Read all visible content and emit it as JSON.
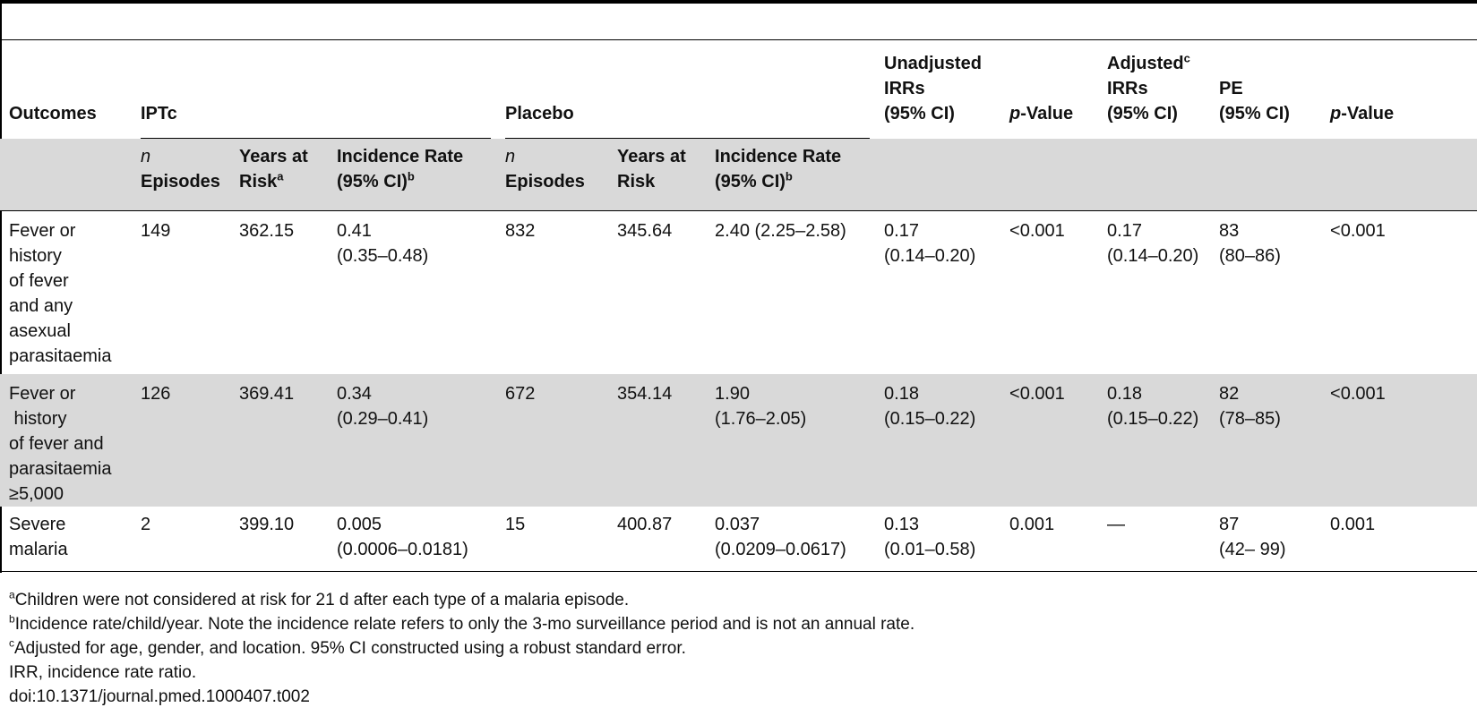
{
  "header": {
    "outcomes": "Outcomes",
    "iptc": "IPTc",
    "placebo": "Placebo",
    "unadjusted_irrs": [
      "Unadjusted",
      "IRRs",
      "(95% CI)"
    ],
    "p_value_italic": "p",
    "p_value_rest": "-Value",
    "adjusted_irrs": [
      "Adjusted",
      "IRRs",
      "(95% CI)"
    ],
    "adjusted_sup": "c",
    "pe": [
      "PE",
      "(95% CI)"
    ]
  },
  "subheader": {
    "n_italic": "n",
    "episodes": "Episodes",
    "years_at": "Years at",
    "risk": "Risk",
    "risk_sup": "a",
    "incidence_rate": "Incidence Rate",
    "ci": "(95% CI)",
    "ci_sup": "b",
    "years_at_risk_2": [
      "Years at",
      "Risk"
    ]
  },
  "rows": [
    {
      "outcome": [
        "Fever or",
        "history",
        "of fever",
        "and any",
        "asexual",
        "parasitaemia"
      ],
      "iptc_n": "149",
      "iptc_years": "362.15",
      "iptc_rate": [
        "0.41",
        "(0.35–0.48)"
      ],
      "placebo_n": "832",
      "placebo_years": "345.64",
      "placebo_rate": [
        "2.40 (2.25–2.58)"
      ],
      "unadj": [
        "0.17",
        "(0.14–0.20)"
      ],
      "p1": "<0.001",
      "adj": [
        "0.17",
        "(0.14–0.20)"
      ],
      "pe": [
        "83",
        "(80–86)"
      ],
      "p2": "<0.001"
    },
    {
      "outcome": [
        "Fever or",
        " history",
        "of fever and",
        "parasitaemia",
        "≥5,000"
      ],
      "iptc_n": "126",
      "iptc_years": "369.41",
      "iptc_rate": [
        "0.34",
        "(0.29–0.41)"
      ],
      "placebo_n": "672",
      "placebo_years": "354.14",
      "placebo_rate": [
        "1.90",
        "(1.76–2.05)"
      ],
      "unadj": [
        "0.18",
        "(0.15–0.22)"
      ],
      "p1": "<0.001",
      "adj": [
        "0.18",
        "(0.15–0.22)"
      ],
      "pe": [
        "82",
        "(78–85)"
      ],
      "p2": "<0.001"
    },
    {
      "outcome": [
        "Severe",
        "malaria"
      ],
      "iptc_n": "2",
      "iptc_years": "399.10",
      "iptc_rate": [
        "0.005",
        "(0.0006–0.0181)"
      ],
      "placebo_n": "15",
      "placebo_years": "400.87",
      "placebo_rate": [
        "0.037",
        "(0.0209–0.0617)"
      ],
      "unadj": [
        "0.13",
        "(0.01–0.58)"
      ],
      "p1": "0.001",
      "adj": [
        "—"
      ],
      "pe": [
        "87",
        "(42– 99)"
      ],
      "p2": "0.001"
    }
  ],
  "footnotes": [
    {
      "sup": "a",
      "text": "Children were not considered at risk for 21 d after each type of a malaria episode."
    },
    {
      "sup": "b",
      "text": "Incidence rate/child/year. Note the incidence relate refers to only the 3-mo surveillance period and is not an annual rate."
    },
    {
      "sup": "c",
      "text": "Adjusted for age, gender, and location. 95% CI constructed using a robust standard error."
    },
    {
      "sup": "",
      "text": "IRR, incidence rate ratio."
    },
    {
      "sup": "",
      "text": "doi:10.1371/journal.pmed.1000407.t002"
    }
  ]
}
